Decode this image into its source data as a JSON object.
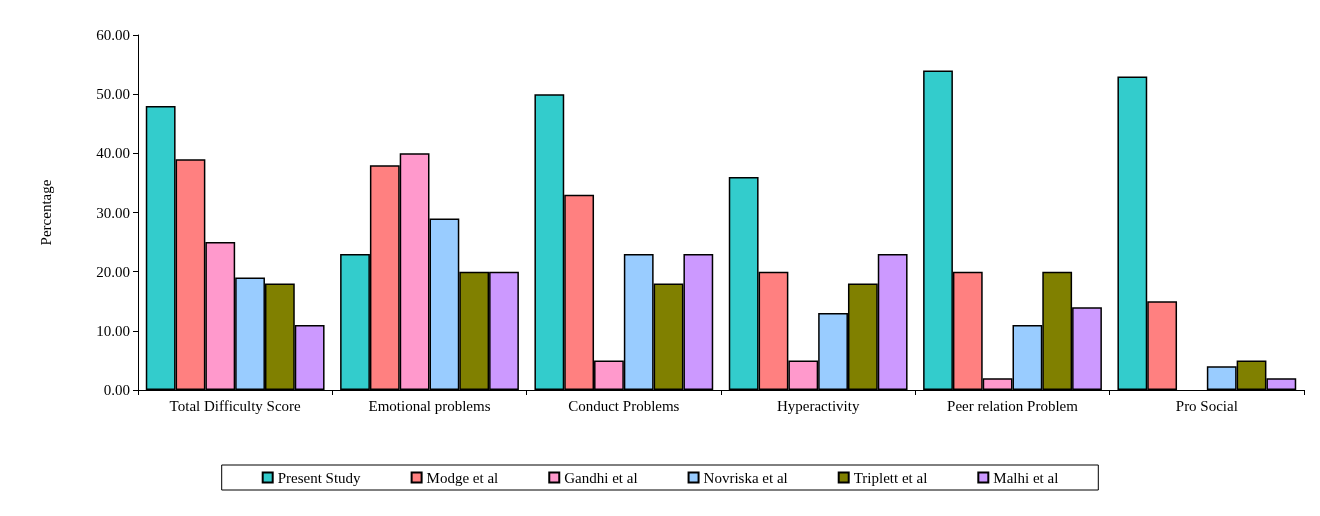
{
  "chart_data": {
    "type": "bar",
    "ylabel": "Percentage",
    "categories": [
      "Total Difficulty Score",
      "Emotional problems",
      "Conduct Problems",
      "Hyperactivity",
      "Peer relation Problem",
      "Pro Social"
    ],
    "series": [
      {
        "name": "Present Study",
        "color": "#33cccc",
        "values": [
          48,
          23,
          50,
          36,
          54,
          53
        ]
      },
      {
        "name": "Modge et al",
        "color": "#ff8080",
        "values": [
          39,
          38,
          33,
          20,
          20,
          15
        ]
      },
      {
        "name": "Gandhi et al",
        "color": "#ff99cc",
        "values": [
          25,
          40,
          5,
          5,
          2,
          null
        ]
      },
      {
        "name": "Novriska et al",
        "color": "#99ccff",
        "values": [
          19,
          29,
          23,
          13,
          11,
          4
        ]
      },
      {
        "name": "Triplett et al",
        "color": "#808000",
        "values": [
          18,
          20,
          18,
          18,
          20,
          5
        ]
      },
      {
        "name": "Malhi et al",
        "color": "#cc99ff",
        "values": [
          11,
          20,
          23,
          23,
          14,
          2
        ]
      }
    ],
    "ylim": [
      0,
      60
    ],
    "yticks": [
      {
        "value": 0,
        "label": "0.00"
      },
      {
        "value": 10,
        "label": "10.00"
      },
      {
        "value": 20,
        "label": "20.00"
      },
      {
        "value": 30,
        "label": "30.00"
      },
      {
        "value": 40,
        "label": "40.00"
      },
      {
        "value": 50,
        "label": "50.00"
      },
      {
        "value": 60,
        "label": "60.00"
      }
    ],
    "grid": false,
    "legend": "bottom"
  }
}
